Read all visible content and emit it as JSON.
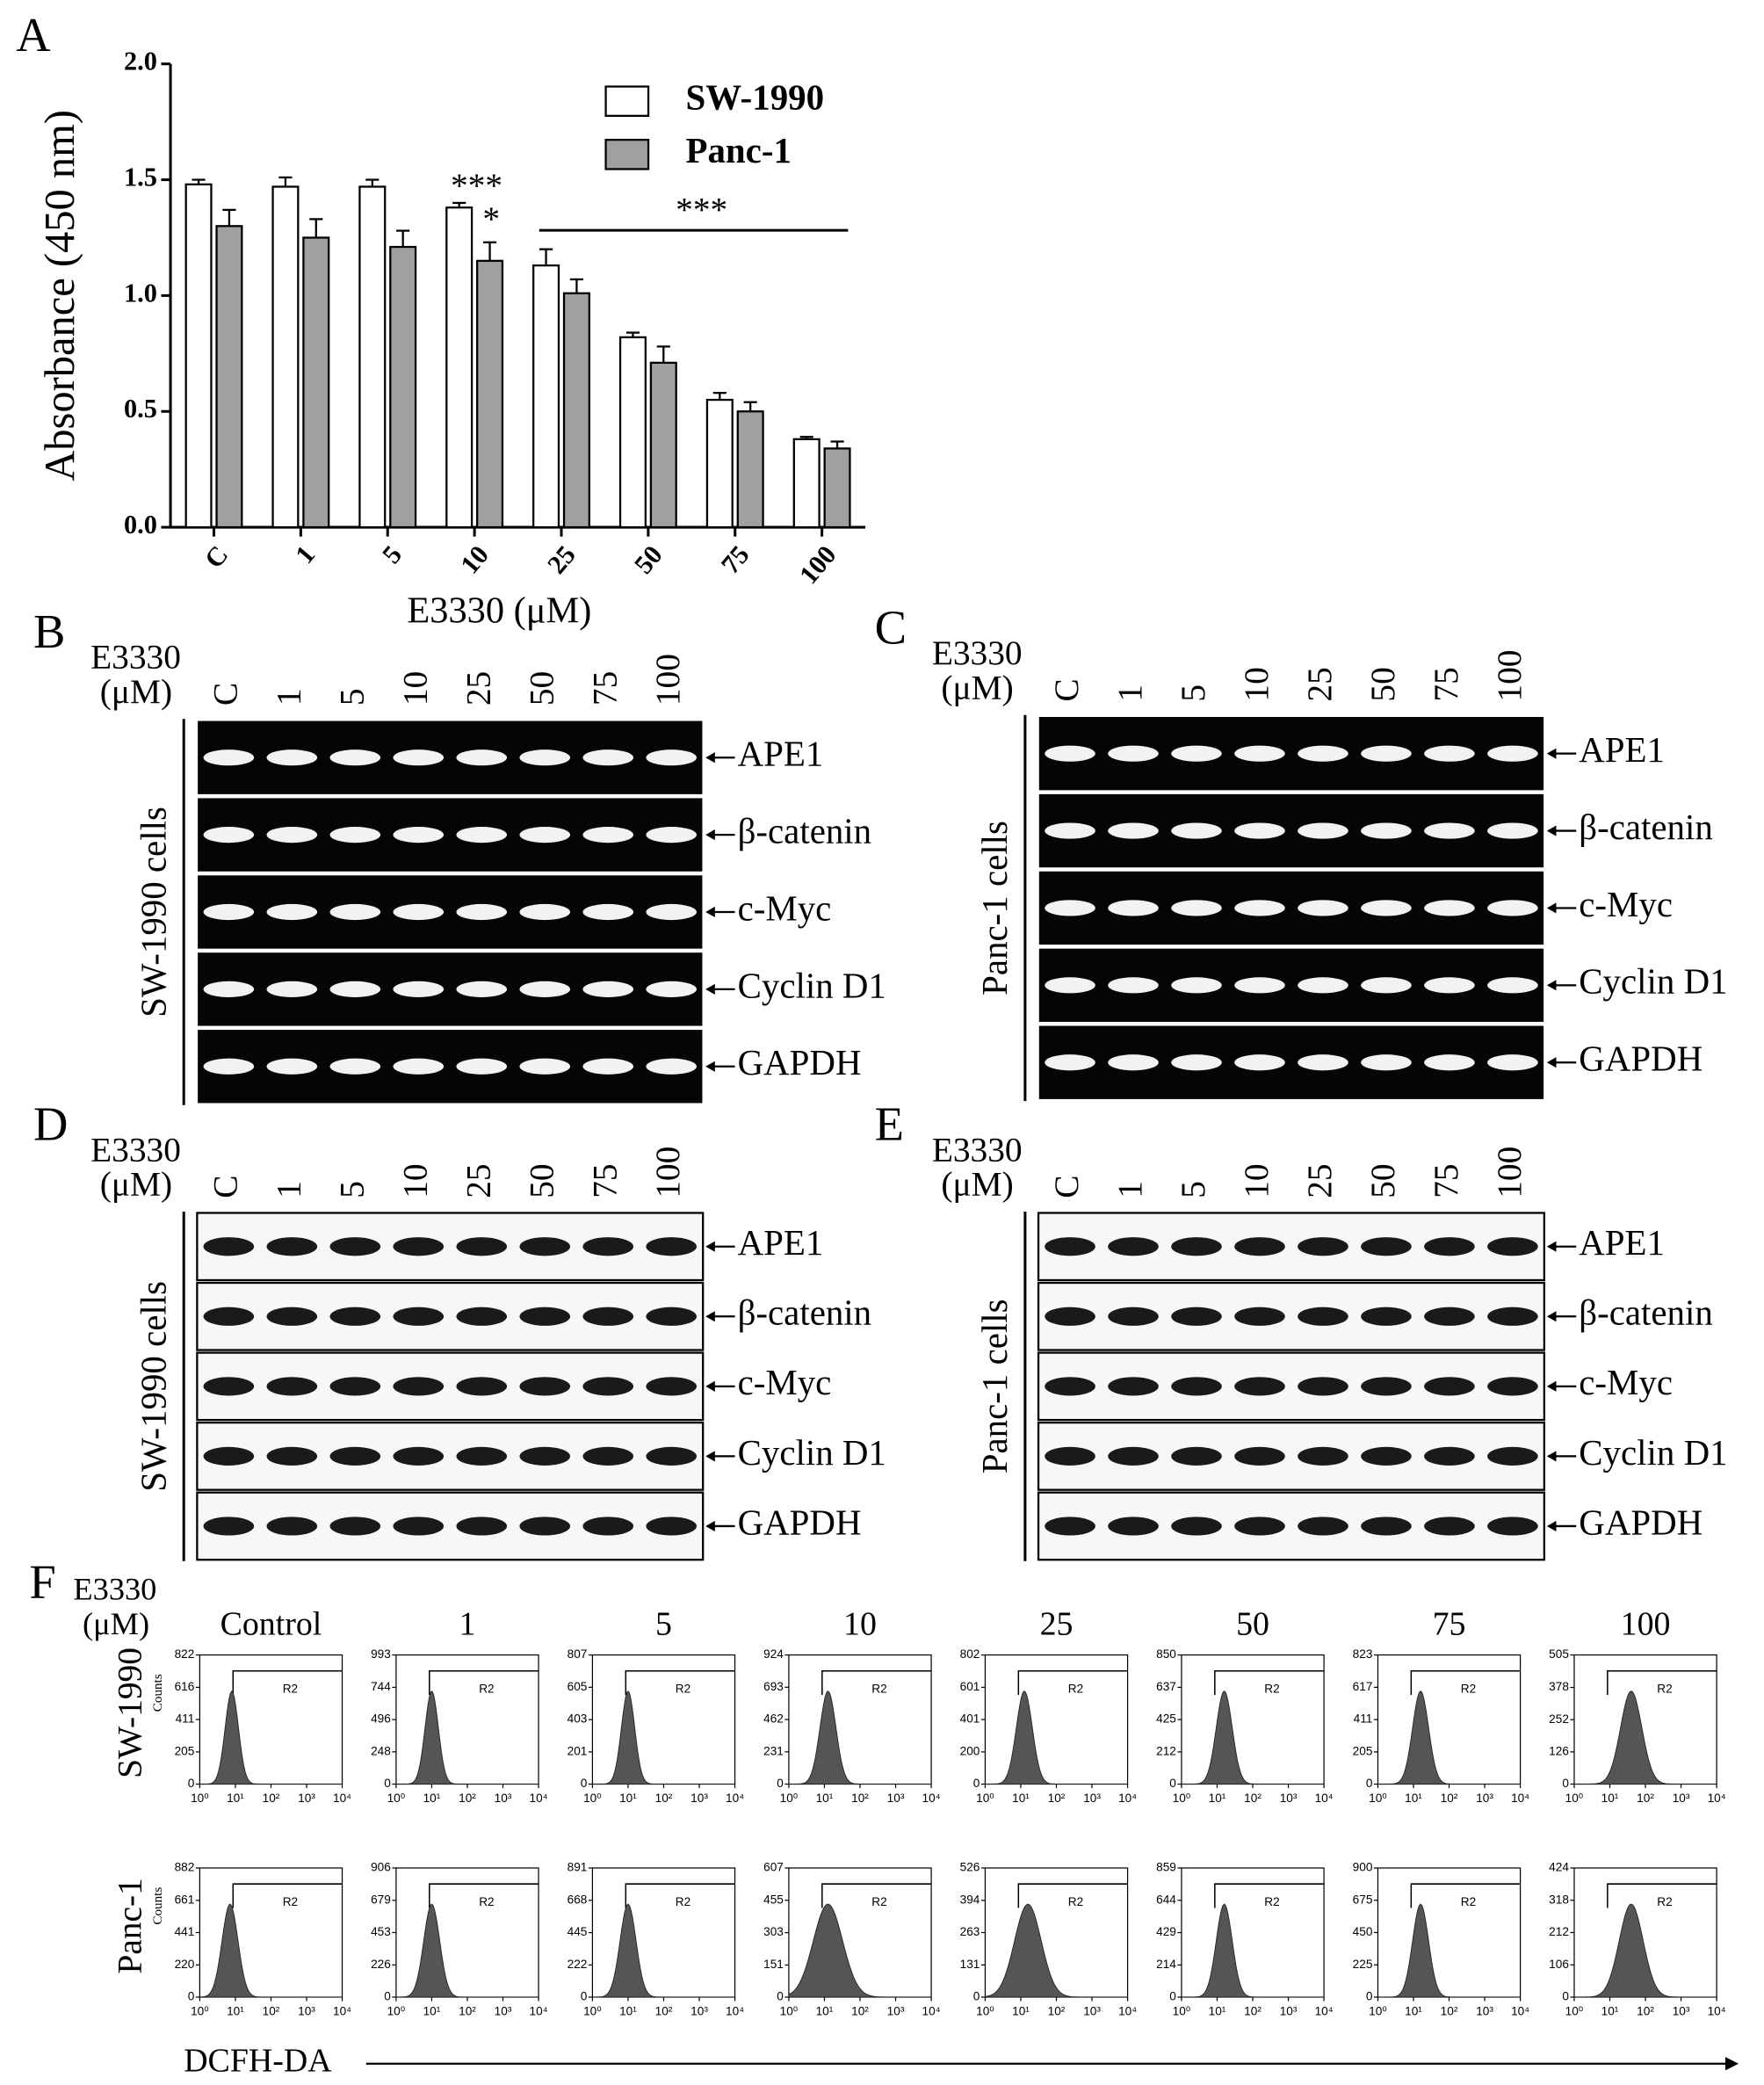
{
  "chart_data": {
    "type": "bar",
    "panel_label": "A",
    "categories": [
      "C",
      "1",
      "5",
      "10",
      "25",
      "50",
      "75",
      "100"
    ],
    "series": [
      {
        "name": "SW-1990",
        "color": "#ffffff",
        "values": [
          1.48,
          1.47,
          1.47,
          1.38,
          1.13,
          0.82,
          0.55,
          0.38
        ],
        "errors": [
          0.02,
          0.04,
          0.03,
          0.02,
          0.07,
          0.02,
          0.03,
          0.01
        ]
      },
      {
        "name": "Panc-1",
        "color": "#a0a0a0",
        "values": [
          1.3,
          1.25,
          1.21,
          1.15,
          1.01,
          0.71,
          0.5,
          0.34
        ],
        "errors": [
          0.07,
          0.08,
          0.07,
          0.08,
          0.06,
          0.07,
          0.04,
          0.03
        ]
      }
    ],
    "ylim": [
      0,
      2
    ],
    "yticks": [
      {
        "value": 0,
        "label": "0.0"
      },
      {
        "value": 0.5,
        "label": "0.5"
      },
      {
        "value": 1,
        "label": "1.0"
      },
      {
        "value": 1.5,
        "label": "1.5"
      },
      {
        "value": 2,
        "label": "2.0"
      }
    ],
    "ylabel": "Absorbance (450 nm)",
    "xlabel": "E3330 (μM)",
    "legend": "upper-center",
    "annotations": [
      "***",
      "*",
      "***"
    ]
  },
  "blots": [
    {
      "label": "B",
      "treatment": "E3330",
      "unit": "(μM)",
      "lanes": [
        "C",
        "1",
        "5",
        "10",
        "25",
        "50",
        "75",
        "100"
      ],
      "cells": "SW-1990 cells",
      "bands": [
        "APE1",
        "β-catenin",
        "c-Myc",
        "Cyclin D1",
        "GAPDH"
      ]
    },
    {
      "label": "C",
      "treatment": "E3330",
      "unit": "(μM)",
      "lanes": [
        "C",
        "1",
        "5",
        "10",
        "25",
        "50",
        "75",
        "100"
      ],
      "cells": "Panc-1 cells",
      "bands": [
        "APE1",
        "β-catenin",
        "c-Myc",
        "Cyclin D1",
        "GAPDH"
      ]
    },
    {
      "label": "D",
      "treatment": "E3330",
      "unit": "(μM)",
      "lanes": [
        "C",
        "1",
        "5",
        "10",
        "25",
        "50",
        "75",
        "100"
      ],
      "cells": "SW-1990 cells",
      "bands": [
        "APE1",
        "β-catenin",
        "c-Myc",
        "Cyclin D1",
        "GAPDH"
      ]
    },
    {
      "label": "E",
      "treatment": "E3330",
      "unit": "(μM)",
      "lanes": [
        "C",
        "1",
        "5",
        "10",
        "25",
        "50",
        "75",
        "100"
      ],
      "cells": "Panc-1 cells",
      "bands": [
        "APE1",
        "β-catenin",
        "c-Myc",
        "Cyclin D1",
        "GAPDH"
      ]
    }
  ],
  "flow": {
    "label": "F",
    "treatment": "E3330",
    "unit": "(μM)",
    "columns": [
      "Control",
      "1",
      "5",
      "10",
      "25",
      "50",
      "75",
      "100"
    ],
    "xtick_labels": [
      "10⁰",
      "10¹",
      "10²",
      "10³",
      "10⁴"
    ],
    "gate": "R2",
    "xlabel": "DCFH-DA",
    "rows": [
      {
        "name": "SW-1990",
        "counts_label": "Counts",
        "yticks": [
          [
            822,
            616,
            411,
            205,
            0
          ],
          [
            993,
            744,
            496,
            248,
            0
          ],
          [
            807,
            605,
            403,
            201,
            0
          ],
          [
            924,
            693,
            462,
            231,
            0
          ],
          [
            802,
            601,
            401,
            200,
            0
          ],
          [
            850,
            637,
            425,
            212,
            0
          ],
          [
            823,
            617,
            411,
            205,
            0
          ],
          [
            505,
            378,
            252,
            126,
            0
          ]
        ]
      },
      {
        "name": "Panc-1",
        "counts_label": "Counts",
        "yticks": [
          [
            882,
            661,
            441,
            220,
            0
          ],
          [
            906,
            679,
            453,
            226,
            0
          ],
          [
            891,
            668,
            445,
            222,
            0
          ],
          [
            607,
            455,
            303,
            151,
            0
          ],
          [
            526,
            394,
            263,
            131,
            0
          ],
          [
            859,
            644,
            429,
            214,
            0
          ],
          [
            900,
            675,
            450,
            225,
            0
          ],
          [
            424,
            318,
            212,
            106,
            0
          ]
        ]
      }
    ]
  }
}
